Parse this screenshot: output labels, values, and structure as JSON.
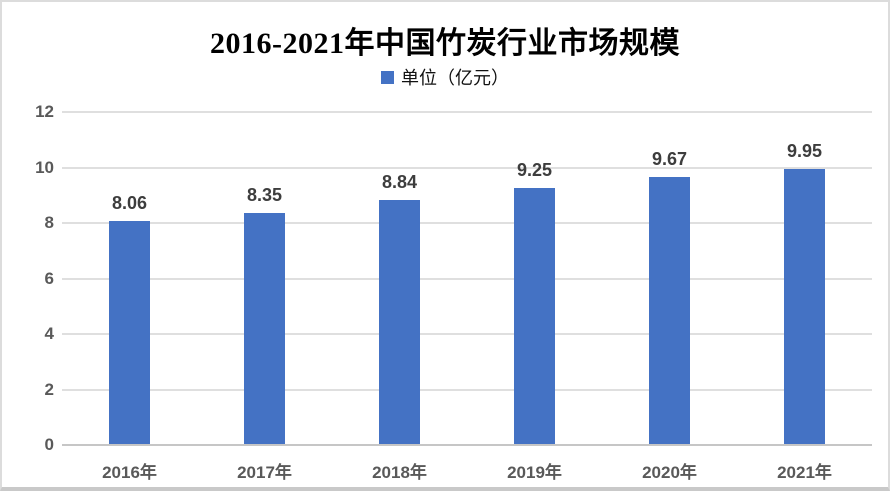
{
  "chart_data": {
    "type": "bar",
    "title": "2016-2021年中国竹炭行业市场规模",
    "legend": "单位（亿元）",
    "categories": [
      "2016年",
      "2017年",
      "2018年",
      "2019年",
      "2020年",
      "2021年"
    ],
    "values": [
      8.06,
      8.35,
      8.84,
      9.25,
      9.67,
      9.95
    ],
    "value_labels": [
      "8.06",
      "8.35",
      "8.84",
      "9.25",
      "9.67",
      "9.95"
    ],
    "ylim": [
      0,
      12
    ],
    "yticks": [
      0,
      2,
      4,
      6,
      8,
      10,
      12
    ],
    "grid": true,
    "legend_position": "top",
    "colors": {
      "bar": "#4472C4",
      "gridline": "#dfdfdf",
      "axis_line": "#c6c6c6",
      "tick_label": "#595959",
      "data_label": "#3d3d3d",
      "title": "#000000"
    }
  }
}
